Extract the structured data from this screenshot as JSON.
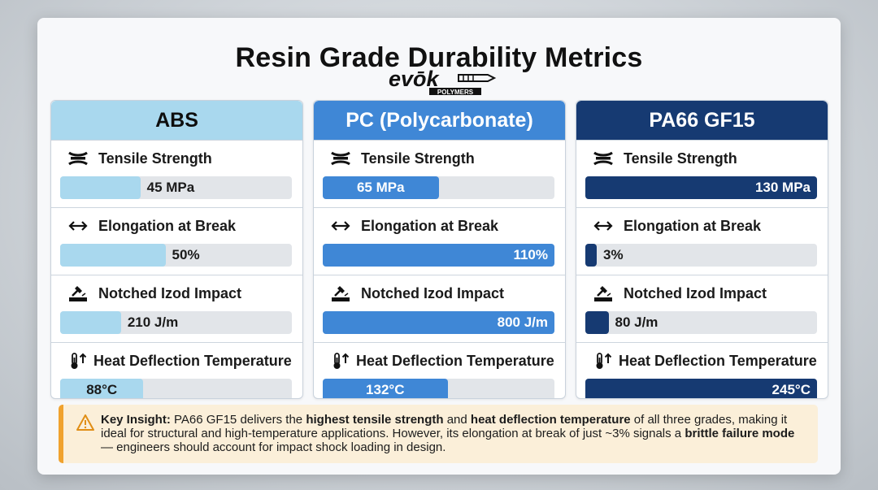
{
  "title": "Resin Grade Durability Metrics",
  "logo": {
    "word": "evōk",
    "sub": "POLYMERS"
  },
  "colors": {
    "abs": "#a9d8ee",
    "abs_header": "#a9d8ee",
    "pc": "#3f87d6",
    "pc_header": "#3f87d6",
    "pa": "#163a72",
    "pa_header": "#163a72",
    "accent": "#f0a22e"
  },
  "chart_data": {
    "type": "bar",
    "title": "Resin Grade Durability Metrics",
    "orientation": "horizontal",
    "grades": [
      "ABS",
      "PC (Polycarbonate)",
      "PA66 GF15"
    ],
    "metrics": [
      {
        "name": "Tensile Strength",
        "unit": "MPa",
        "values": [
          45,
          65,
          130
        ],
        "labels": [
          "45 MPa",
          "65 MPa",
          "130 MPa"
        ],
        "max": 130
      },
      {
        "name": "Elongation at Break",
        "unit": "%",
        "values": [
          50,
          110,
          3
        ],
        "labels": [
          "50%",
          "110%",
          "3%"
        ],
        "max": 110
      },
      {
        "name": "Notched Izod Impact",
        "unit": "J/m",
        "values": [
          210,
          800,
          80
        ],
        "labels": [
          "210 J/m",
          "800 J/m",
          "80 J/m"
        ],
        "max": 800
      },
      {
        "name": "Heat Deflection Temperature",
        "unit": "°C",
        "values": [
          88,
          132,
          245
        ],
        "labels": [
          "88°C",
          "132°C",
          "245°C"
        ],
        "max": 245
      }
    ]
  },
  "insight": {
    "label": "Key Insight:",
    "t1": " PA66 GF15 delivers the ",
    "b1": "highest tensile strength",
    "t2": " and ",
    "b2": "heat deflection temperature",
    "t3": " of all three grades, making it ideal for structural and high-temperature applications. However, its elongation at break of just ~3% signals a ",
    "b3": "brittle failure mode",
    "t4": " — engineers should account for impact shock loading in design."
  }
}
